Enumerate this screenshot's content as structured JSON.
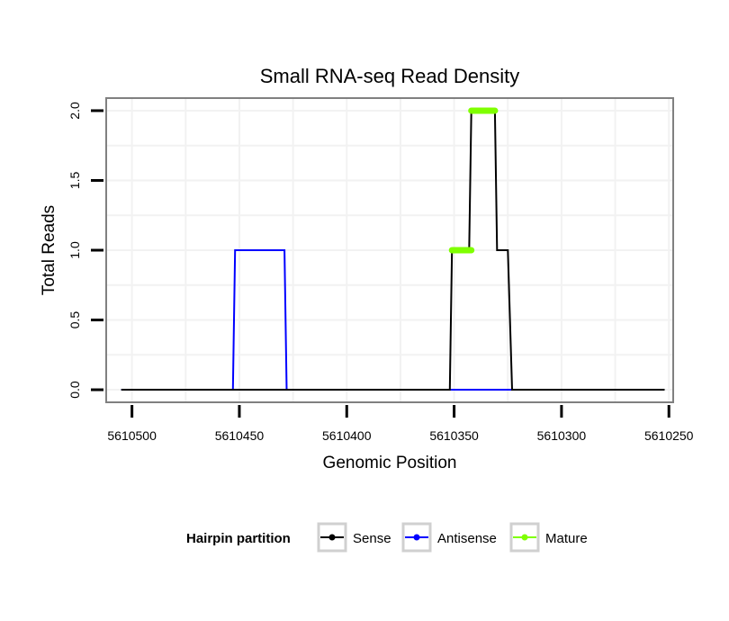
{
  "chart_data": {
    "type": "line",
    "title": "Small RNA-seq Read Density",
    "xlabel": "Genomic Position",
    "ylabel": "Total Reads",
    "xlim": [
      5610512,
      5610248
    ],
    "ylim": [
      -0.09,
      2.09
    ],
    "x_reversed": true,
    "x_ticks": [
      5610500,
      5610450,
      5610400,
      5610350,
      5610300,
      5610250
    ],
    "x_tick_labels": [
      "5610500",
      "5610450",
      "5610400",
      "5610350",
      "5610300",
      "5610250"
    ],
    "y_ticks": [
      0.0,
      0.5,
      1.0,
      1.5,
      2.0
    ],
    "y_tick_labels": [
      "0.0",
      "0.5",
      "1.0",
      "1.5",
      "2.0"
    ],
    "grid": true,
    "series": [
      {
        "name": "Antisense",
        "color": "#0000ff",
        "x": [
          5610505,
          5610453,
          5610452,
          5610429,
          5610428,
          5610352,
          5610322
        ],
        "y": [
          0,
          0,
          1,
          1,
          0,
          0,
          0
        ]
      },
      {
        "name": "Sense",
        "color": "#000000",
        "x": [
          5610505,
          5610352,
          5610351,
          5610343,
          5610342,
          5610331,
          5610330,
          5610325,
          5610323,
          5610252
        ],
        "y": [
          0,
          0,
          1,
          1,
          2,
          2,
          1,
          1,
          0,
          0
        ]
      },
      {
        "name": "Mature",
        "color": "#7fff00",
        "segments": [
          {
            "x": [
              5610351,
              5610342
            ],
            "y": [
              1,
              1
            ]
          },
          {
            "x": [
              5610342,
              5610331
            ],
            "y": [
              2,
              2
            ]
          }
        ]
      }
    ],
    "legend": {
      "title": "Hairpin partition",
      "position": "bottom",
      "entries": [
        {
          "label": "Sense",
          "color": "#000000"
        },
        {
          "label": "Antisense",
          "color": "#0000ff"
        },
        {
          "label": "Mature",
          "color": "#7fff00"
        }
      ]
    }
  }
}
